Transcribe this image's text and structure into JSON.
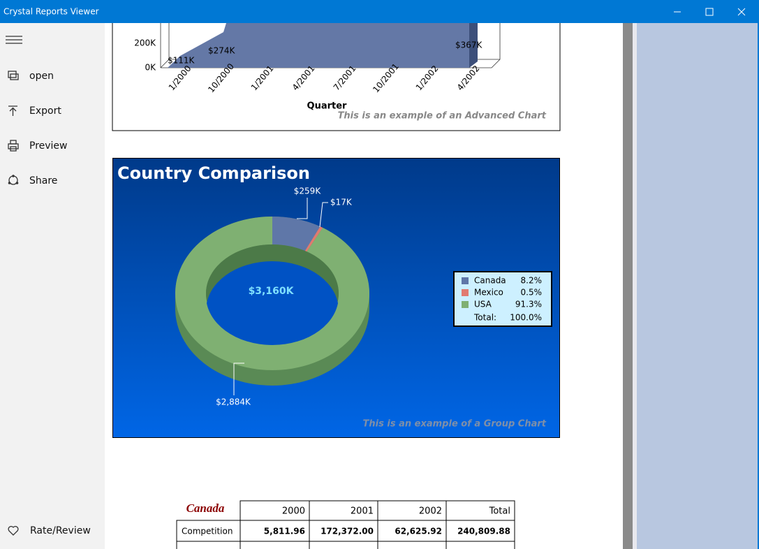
{
  "window": {
    "title": "Crystal Reports Viewer"
  },
  "nav": {
    "items": [
      "open",
      "Export",
      "Preview",
      "Share"
    ],
    "footer": "Rate/Review"
  },
  "advanced_chart": {
    "yticks": [
      "200K",
      "0K"
    ],
    "labels": [
      "$111K",
      "$274K",
      "$367K"
    ],
    "categories": [
      "1/2000",
      "10/2000",
      "1/2001",
      "4/2001",
      "7/2001",
      "10/2001",
      "1/2002",
      "4/2002"
    ],
    "axis_title": "Quarter",
    "note": "This is an example of an Advanced Chart"
  },
  "group_chart": {
    "title": "Country Comparison",
    "labels": [
      "$259K",
      "$17K",
      "$2,884K"
    ],
    "center": "$3,160K",
    "legend": [
      {
        "name": "Canada",
        "share": {
          "value": 8.2,
          "label": "8.2%"
        },
        "color": "#5f77a8"
      },
      {
        "name": "Mexico",
        "share": {
          "value": 0.5,
          "label": "0.5%"
        },
        "color": "#e07a70"
      },
      {
        "name": "USA",
        "share": {
          "value": 91.3,
          "label": "91.3%"
        },
        "color": "#7fb072"
      }
    ],
    "total": {
      "name": "Total:",
      "share": "100.0%"
    },
    "note": "This is an example of a Group Chart"
  },
  "table": {
    "title": "Canada",
    "header": [
      "2000",
      "2001",
      "2002",
      "Total"
    ],
    "rows": [
      [
        "Competition",
        "5,811.96",
        "172,372.00",
        "62,625.92",
        "240,809.88"
      ]
    ]
  }
}
